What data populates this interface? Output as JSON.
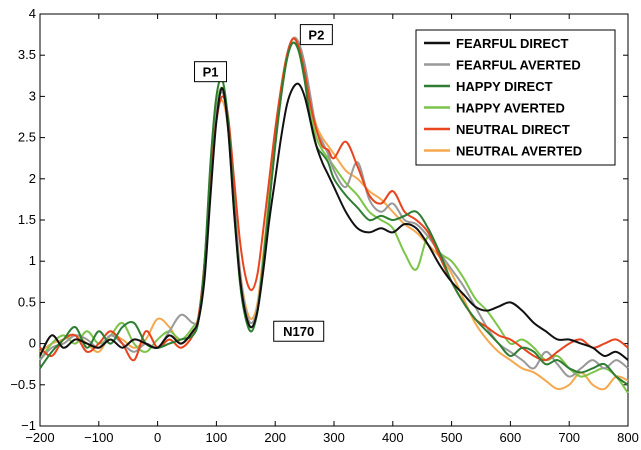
{
  "chart_data": {
    "type": "line",
    "title": "",
    "xlabel": "",
    "ylabel": "",
    "xlim": [
      -200,
      800
    ],
    "ylim": [
      -1,
      4
    ],
    "x_ticks": [
      -200,
      -100,
      0,
      100,
      200,
      300,
      400,
      500,
      600,
      700,
      800
    ],
    "y_ticks": [
      -1,
      -0.5,
      0,
      0.5,
      1,
      1.5,
      2,
      2.5,
      3,
      3.5,
      4
    ],
    "x_tick_labels": [
      "−200",
      "−100",
      "0",
      "100",
      "200",
      "300",
      "400",
      "500",
      "600",
      "700",
      "800"
    ],
    "y_tick_labels": [
      "−1",
      "−0.5",
      "0",
      "0.5",
      "1",
      "1.5",
      "2",
      "2.5",
      "3",
      "3.5",
      "4"
    ],
    "grid": false,
    "legend_position": "top-right",
    "annotations": [
      {
        "text": "P1",
        "x": 90,
        "y": 3.3
      },
      {
        "text": "P2",
        "x": 270,
        "y": 3.75
      },
      {
        "text": "N170",
        "x": 240,
        "y": 0.15
      }
    ],
    "series": [
      {
        "name": "FEARFUL DIRECT",
        "color": "#111111",
        "x": [
          -200,
          -180,
          -160,
          -140,
          -120,
          -100,
          -80,
          -60,
          -40,
          -20,
          0,
          20,
          40,
          60,
          70,
          80,
          90,
          100,
          110,
          120,
          130,
          140,
          150,
          160,
          170,
          180,
          190,
          200,
          210,
          220,
          230,
          240,
          250,
          260,
          270,
          280,
          290,
          300,
          320,
          340,
          360,
          380,
          400,
          420,
          440,
          460,
          480,
          500,
          520,
          540,
          560,
          580,
          600,
          620,
          640,
          660,
          680,
          700,
          720,
          740,
          760,
          780,
          800
        ],
        "y": [
          -0.15,
          0.1,
          -0.05,
          0.05,
          0.0,
          -0.05,
          0.05,
          -0.05,
          0.05,
          0.0,
          -0.05,
          0.1,
          0.0,
          0.15,
          0.3,
          0.8,
          1.8,
          2.7,
          3.1,
          2.6,
          1.6,
          0.8,
          0.35,
          0.2,
          0.4,
          0.9,
          1.5,
          2.0,
          2.5,
          2.9,
          3.1,
          3.15,
          3.0,
          2.7,
          2.4,
          2.2,
          2.05,
          1.9,
          1.6,
          1.4,
          1.35,
          1.4,
          1.35,
          1.45,
          1.4,
          1.2,
          0.95,
          0.75,
          0.6,
          0.45,
          0.4,
          0.45,
          0.5,
          0.4,
          0.25,
          0.15,
          0.05,
          0.05,
          0.0,
          -0.05,
          -0.15,
          -0.1,
          -0.2
        ]
      },
      {
        "name": "FEARFUL AVERTED",
        "color": "#999999",
        "x": [
          -200,
          -180,
          -160,
          -140,
          -120,
          -100,
          -80,
          -60,
          -40,
          -20,
          0,
          20,
          40,
          60,
          70,
          80,
          90,
          100,
          110,
          120,
          130,
          140,
          150,
          160,
          170,
          180,
          190,
          200,
          210,
          220,
          230,
          240,
          250,
          260,
          270,
          280,
          290,
          300,
          320,
          340,
          360,
          380,
          400,
          420,
          440,
          460,
          480,
          500,
          520,
          540,
          560,
          580,
          600,
          620,
          640,
          660,
          680,
          700,
          720,
          740,
          760,
          780,
          800
        ],
        "y": [
          -0.2,
          -0.05,
          0.0,
          0.1,
          0.05,
          -0.05,
          0.1,
          0.0,
          -0.1,
          0.0,
          -0.05,
          0.15,
          0.35,
          0.25,
          0.3,
          0.9,
          2.0,
          2.8,
          3.05,
          2.7,
          1.8,
          0.9,
          0.4,
          0.25,
          0.45,
          1.0,
          1.7,
          2.4,
          3.0,
          3.5,
          3.7,
          3.65,
          3.4,
          3.0,
          2.6,
          2.45,
          2.3,
          2.1,
          1.9,
          2.2,
          1.75,
          1.6,
          1.7,
          1.5,
          1.45,
          1.3,
          1.1,
          0.9,
          0.7,
          0.45,
          0.2,
          0.0,
          -0.1,
          -0.2,
          -0.3,
          -0.1,
          -0.25,
          -0.4,
          -0.3,
          -0.2,
          -0.3,
          -0.2,
          -0.3
        ]
      },
      {
        "name": "HAPPY DIRECT",
        "color": "#2e7d32",
        "x": [
          -200,
          -180,
          -160,
          -140,
          -120,
          -100,
          -80,
          -60,
          -40,
          -20,
          0,
          20,
          40,
          60,
          70,
          80,
          90,
          100,
          110,
          120,
          130,
          140,
          150,
          160,
          170,
          180,
          190,
          200,
          210,
          220,
          230,
          240,
          250,
          260,
          270,
          280,
          290,
          300,
          320,
          340,
          360,
          380,
          400,
          420,
          440,
          460,
          480,
          500,
          520,
          540,
          560,
          580,
          600,
          620,
          640,
          660,
          680,
          700,
          720,
          740,
          760,
          780,
          800
        ],
        "y": [
          -0.3,
          -0.1,
          0.05,
          0.2,
          -0.05,
          0.15,
          0.0,
          0.2,
          0.25,
          0.0,
          -0.05,
          0.0,
          0.05,
          0.1,
          0.3,
          1.0,
          2.2,
          3.0,
          3.2,
          2.7,
          1.7,
          0.75,
          0.3,
          0.15,
          0.4,
          1.0,
          1.7,
          2.4,
          3.0,
          3.45,
          3.65,
          3.55,
          3.2,
          2.7,
          2.4,
          2.3,
          2.2,
          2.0,
          1.8,
          1.65,
          1.5,
          1.55,
          1.5,
          1.55,
          1.6,
          1.4,
          1.1,
          0.75,
          0.5,
          0.3,
          0.15,
          0.0,
          -0.15,
          -0.05,
          -0.1,
          -0.25,
          -0.2,
          -0.3,
          -0.35,
          -0.3,
          -0.25,
          -0.4,
          -0.5
        ]
      },
      {
        "name": "HAPPY AVERTED",
        "color": "#7cc44a",
        "x": [
          -200,
          -180,
          -160,
          -140,
          -120,
          -100,
          -80,
          -60,
          -40,
          -20,
          0,
          20,
          40,
          60,
          70,
          80,
          90,
          100,
          110,
          120,
          130,
          140,
          150,
          160,
          170,
          180,
          190,
          200,
          210,
          220,
          230,
          240,
          250,
          260,
          270,
          280,
          290,
          300,
          320,
          340,
          360,
          380,
          400,
          420,
          440,
          460,
          480,
          500,
          520,
          540,
          560,
          580,
          600,
          620,
          640,
          660,
          680,
          700,
          720,
          740,
          760,
          780,
          800
        ],
        "y": [
          -0.2,
          0.0,
          0.1,
          0.0,
          0.15,
          0.0,
          0.1,
          0.25,
          0.0,
          -0.1,
          0.05,
          0.15,
          0.05,
          0.2,
          0.35,
          1.0,
          2.1,
          2.85,
          3.1,
          2.6,
          1.6,
          0.75,
          0.3,
          0.2,
          0.4,
          1.05,
          1.8,
          2.5,
          3.1,
          3.5,
          3.65,
          3.55,
          3.2,
          2.8,
          2.5,
          2.35,
          2.25,
          2.15,
          1.95,
          1.8,
          1.6,
          1.5,
          1.4,
          1.1,
          0.9,
          1.3,
          1.1,
          1.0,
          0.8,
          0.55,
          0.4,
          0.2,
          0.0,
          0.05,
          -0.05,
          -0.2,
          -0.15,
          -0.3,
          -0.4,
          -0.35,
          -0.3,
          -0.4,
          -0.6
        ]
      },
      {
        "name": "NEUTRAL DIRECT",
        "color": "#e8441e",
        "x": [
          -200,
          -180,
          -160,
          -140,
          -120,
          -100,
          -80,
          -60,
          -40,
          -20,
          0,
          20,
          40,
          60,
          70,
          80,
          90,
          100,
          110,
          120,
          130,
          140,
          150,
          160,
          170,
          180,
          190,
          200,
          210,
          220,
          230,
          240,
          250,
          260,
          270,
          280,
          290,
          300,
          320,
          340,
          360,
          380,
          400,
          420,
          440,
          460,
          480,
          500,
          520,
          540,
          560,
          580,
          600,
          620,
          640,
          660,
          680,
          700,
          720,
          740,
          760,
          780,
          800
        ],
        "y": [
          -0.05,
          -0.15,
          0.05,
          0.1,
          -0.1,
          0.0,
          0.15,
          0.0,
          -0.2,
          0.15,
          -0.05,
          0.05,
          -0.05,
          0.1,
          0.35,
          1.0,
          2.0,
          2.7,
          3.0,
          2.75,
          2.0,
          1.25,
          0.8,
          0.65,
          0.85,
          1.4,
          2.0,
          2.6,
          3.1,
          3.5,
          3.7,
          3.6,
          3.3,
          2.9,
          2.6,
          2.4,
          2.35,
          2.25,
          2.45,
          2.15,
          1.8,
          1.7,
          1.85,
          1.6,
          1.5,
          1.35,
          1.05,
          0.75,
          0.5,
          0.3,
          0.2,
          0.1,
          0.05,
          -0.05,
          -0.15,
          -0.2,
          -0.1,
          0.0,
          0.05,
          -0.05,
          0.0,
          0.05,
          -0.05
        ]
      },
      {
        "name": "NEUTRAL AVERTED",
        "color": "#f5a84e",
        "x": [
          -200,
          -180,
          -160,
          -140,
          -120,
          -100,
          -80,
          -60,
          -40,
          -20,
          0,
          20,
          40,
          60,
          70,
          80,
          90,
          100,
          110,
          120,
          130,
          140,
          150,
          160,
          170,
          180,
          190,
          200,
          210,
          220,
          230,
          240,
          250,
          260,
          270,
          280,
          290,
          300,
          320,
          340,
          360,
          380,
          400,
          420,
          440,
          460,
          480,
          500,
          520,
          540,
          560,
          580,
          600,
          620,
          640,
          660,
          680,
          700,
          720,
          740,
          760,
          780,
          800
        ],
        "y": [
          -0.1,
          0.0,
          0.05,
          0.1,
          0.0,
          -0.1,
          0.1,
          0.05,
          -0.05,
          0.05,
          0.3,
          0.2,
          0.0,
          0.15,
          0.3,
          0.95,
          1.95,
          2.75,
          2.95,
          2.6,
          1.7,
          0.9,
          0.45,
          0.3,
          0.5,
          1.1,
          1.8,
          2.45,
          3.0,
          3.45,
          3.7,
          3.65,
          3.35,
          2.95,
          2.65,
          2.5,
          2.4,
          2.3,
          2.1,
          2.0,
          1.85,
          1.75,
          1.6,
          1.45,
          1.35,
          1.2,
          1.05,
          0.85,
          0.55,
          0.25,
          0.05,
          -0.1,
          -0.2,
          -0.3,
          -0.35,
          -0.45,
          -0.55,
          -0.5,
          -0.35,
          -0.5,
          -0.55,
          -0.4,
          -0.45
        ]
      }
    ]
  }
}
